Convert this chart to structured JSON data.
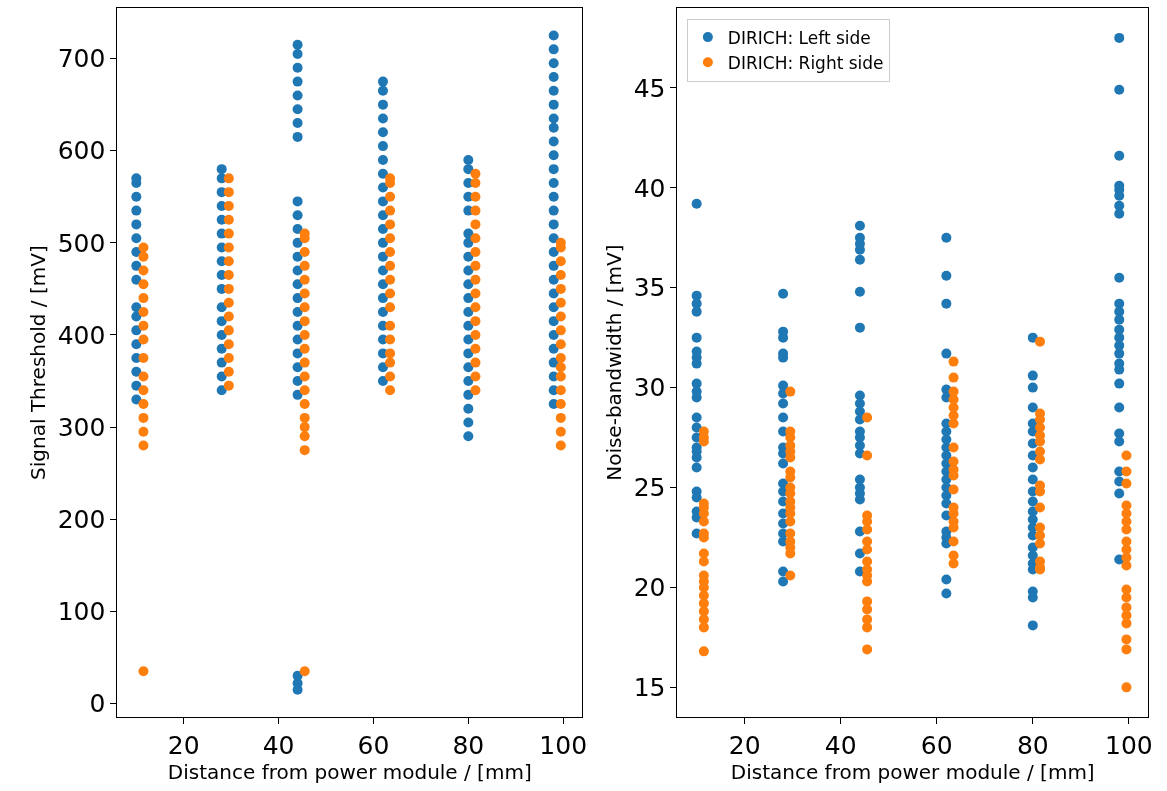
{
  "chart_data": [
    {
      "type": "scatter",
      "xlabel": "Distance from power module / [mm]",
      "ylabel": "Signal Threshold / [mV]",
      "xlim": [
        6,
        104
      ],
      "ylim": [
        -15,
        755
      ],
      "xticks": [
        20,
        40,
        60,
        80,
        100
      ],
      "yticks": [
        0,
        100,
        200,
        300,
        400,
        500,
        600,
        700
      ],
      "legend": false,
      "marker": "circle",
      "series": [
        {
          "color": "#1f77b4",
          "x": [
            10,
            10,
            10,
            10,
            10,
            10,
            10,
            10,
            10,
            10,
            10,
            10,
            10,
            10,
            10,
            10,
            10,
            28,
            28,
            28,
            28,
            28,
            28,
            28,
            28,
            28,
            28,
            28,
            28,
            28,
            28,
            28,
            28,
            28,
            44,
            44,
            44,
            44,
            44,
            44,
            44,
            44,
            44,
            44,
            44,
            44,
            44,
            44,
            44,
            44,
            44,
            44,
            44,
            44,
            44,
            44,
            44,
            44,
            44,
            44,
            62,
            62,
            62,
            62,
            62,
            62,
            62,
            62,
            62,
            62,
            62,
            62,
            62,
            62,
            62,
            62,
            62,
            62,
            62,
            62,
            62,
            62,
            62,
            80,
            80,
            80,
            80,
            80,
            80,
            80,
            80,
            80,
            80,
            80,
            80,
            80,
            80,
            80,
            80,
            80,
            80,
            80,
            80,
            80,
            98,
            98,
            98,
            98,
            98,
            98,
            98,
            98,
            98,
            98,
            98,
            98,
            98,
            98,
            98,
            98,
            98,
            98,
            98,
            98,
            98,
            98,
            98,
            98,
            98,
            98,
            98,
            98
          ],
          "values": [
            330,
            345,
            360,
            375,
            390,
            405,
            420,
            430,
            460,
            475,
            490,
            505,
            520,
            535,
            550,
            565,
            570,
            340,
            355,
            370,
            385,
            400,
            415,
            430,
            450,
            465,
            480,
            495,
            510,
            525,
            540,
            555,
            570,
            580,
            15,
            22,
            30,
            335,
            350,
            365,
            380,
            395,
            410,
            425,
            440,
            455,
            470,
            485,
            500,
            515,
            530,
            545,
            615,
            630,
            645,
            660,
            675,
            690,
            705,
            715,
            350,
            365,
            380,
            395,
            410,
            425,
            440,
            455,
            470,
            485,
            500,
            515,
            530,
            545,
            560,
            575,
            590,
            605,
            620,
            635,
            650,
            665,
            675,
            290,
            305,
            320,
            335,
            350,
            365,
            380,
            395,
            410,
            425,
            440,
            455,
            470,
            485,
            500,
            510,
            535,
            550,
            565,
            580,
            590,
            325,
            340,
            355,
            370,
            385,
            400,
            415,
            430,
            445,
            460,
            475,
            490,
            505,
            520,
            535,
            550,
            565,
            580,
            595,
            610,
            625,
            635,
            650,
            665,
            680,
            695,
            710,
            725
          ]
        },
        {
          "color": "#ff7f0e",
          "x": [
            11.5,
            11.5,
            11.5,
            11.5,
            11.5,
            11.5,
            11.5,
            11.5,
            11.5,
            11.5,
            11.5,
            11.5,
            11.5,
            11.5,
            11.5,
            11.5,
            29.5,
            29.5,
            29.5,
            29.5,
            29.5,
            29.5,
            29.5,
            29.5,
            29.5,
            29.5,
            29.5,
            29.5,
            29.5,
            29.5,
            29.5,
            29.5,
            45.5,
            45.5,
            45.5,
            45.5,
            45.5,
            45.5,
            45.5,
            45.5,
            45.5,
            45.5,
            45.5,
            45.5,
            45.5,
            45.5,
            45.5,
            45.5,
            45.5,
            45.5,
            45.5,
            63.5,
            63.5,
            63.5,
            63.5,
            63.5,
            63.5,
            63.5,
            63.5,
            63.5,
            63.5,
            63.5,
            63.5,
            63.5,
            63.5,
            63.5,
            63.5,
            63.5,
            81.5,
            81.5,
            81.5,
            81.5,
            81.5,
            81.5,
            81.5,
            81.5,
            81.5,
            81.5,
            81.5,
            81.5,
            81.5,
            81.5,
            81.5,
            81.5,
            81.5,
            99.5,
            99.5,
            99.5,
            99.5,
            99.5,
            99.5,
            99.5,
            99.5,
            99.5,
            99.5,
            99.5,
            99.5,
            99.5,
            99.5,
            99.5,
            99.5,
            99.5
          ],
          "values": [
            35,
            280,
            295,
            310,
            325,
            340,
            355,
            375,
            395,
            410,
            425,
            440,
            455,
            470,
            485,
            495,
            345,
            360,
            375,
            390,
            405,
            420,
            435,
            450,
            465,
            480,
            495,
            510,
            525,
            540,
            555,
            570,
            35,
            275,
            290,
            300,
            310,
            325,
            340,
            355,
            370,
            385,
            400,
            415,
            430,
            445,
            460,
            475,
            490,
            505,
            510,
            340,
            355,
            370,
            380,
            395,
            410,
            430,
            445,
            460,
            475,
            490,
            505,
            520,
            535,
            550,
            565,
            570,
            340,
            355,
            370,
            385,
            400,
            415,
            430,
            445,
            460,
            475,
            490,
            505,
            520,
            535,
            550,
            565,
            575,
            280,
            295,
            310,
            325,
            340,
            355,
            365,
            375,
            390,
            405,
            420,
            435,
            450,
            465,
            480,
            495,
            500
          ]
        }
      ]
    },
    {
      "type": "scatter",
      "xlabel": "Distance from power module / [mm]",
      "ylabel": "Noise-bandwidth / [mV]",
      "xlim": [
        6,
        104
      ],
      "ylim": [
        13.5,
        49
      ],
      "xticks": [
        20,
        40,
        60,
        80,
        100
      ],
      "yticks": [
        15,
        20,
        25,
        30,
        35,
        40,
        45
      ],
      "legend": "top left",
      "marker": "circle",
      "series": [
        {
          "name": "DIRICH: Left side",
          "color": "#1f77b4",
          "x": [
            10,
            10,
            10,
            10,
            10,
            10,
            10,
            10,
            10,
            10,
            10,
            10,
            10,
            10,
            10,
            10,
            10,
            10,
            10,
            10,
            10,
            10,
            10,
            28,
            28,
            28,
            28,
            28,
            28,
            28,
            28,
            28,
            28,
            28,
            28,
            28,
            28,
            28,
            28,
            28,
            28,
            28,
            28,
            28,
            28,
            44,
            44,
            44,
            44,
            44,
            44,
            44,
            44,
            44,
            44,
            44,
            44,
            44,
            44,
            44,
            44,
            44,
            44,
            44,
            44,
            44,
            44,
            62,
            62,
            62,
            62,
            62,
            62,
            62,
            62,
            62,
            62,
            62,
            62,
            62,
            62,
            62,
            62,
            62,
            62,
            62,
            62,
            62,
            62,
            62,
            80,
            80,
            80,
            80,
            80,
            80,
            80,
            80,
            80,
            80,
            80,
            80,
            80,
            80,
            80,
            80,
            80,
            80,
            80,
            80,
            80,
            80,
            80,
            98,
            98,
            98,
            98,
            98,
            98,
            98,
            98,
            98,
            98,
            98,
            98,
            98,
            98,
            98,
            98,
            98,
            98,
            98,
            98,
            98,
            98,
            98,
            98,
            98,
            98
          ],
          "values": [
            39.2,
            34.6,
            34.2,
            33.8,
            32.5,
            31.8,
            31.5,
            31.2,
            30.2,
            29.8,
            29.5,
            28.5,
            28,
            27.5,
            27,
            26.8,
            26.5,
            26,
            24.8,
            24.5,
            23.8,
            23.5,
            22.7,
            34.7,
            32.8,
            32.5,
            31.7,
            31.5,
            30.1,
            29.7,
            29.2,
            28.5,
            27.8,
            27,
            26.7,
            26.2,
            25.2,
            24.8,
            24.3,
            23.7,
            23.2,
            22.7,
            22.3,
            20.8,
            20.3,
            38.1,
            37.5,
            37.2,
            36.9,
            36.4,
            34.8,
            33,
            29.6,
            29.2,
            28.8,
            28.4,
            27.8,
            27.5,
            27.1,
            26.7,
            25.4,
            25,
            24.7,
            24.4,
            22.8,
            21.7,
            20.8,
            37.5,
            35.6,
            34.2,
            31.7,
            29.9,
            29.5,
            28.2,
            27.8,
            27.4,
            27,
            26.6,
            26.2,
            25.8,
            25.4,
            25,
            24.6,
            24.2,
            23.6,
            22.8,
            22.5,
            22.2,
            20.4,
            19.7,
            32.5,
            30.6,
            30,
            29,
            28.2,
            27.8,
            27.2,
            26.6,
            26,
            25.4,
            24.8,
            24.3,
            23.8,
            23.4,
            23,
            22.6,
            22,
            21.6,
            21.2,
            20.9,
            19.8,
            19.5,
            18.1,
            47.5,
            44.9,
            41.6,
            40.1,
            39.9,
            39.6,
            39.1,
            38.7,
            35.5,
            34.2,
            33.8,
            33.4,
            32.9,
            32.5,
            32.1,
            31.7,
            31.2,
            30.9,
            30.2,
            29,
            27.7,
            27.3,
            25.8,
            25.3,
            24.7,
            21.4
          ]
        },
        {
          "name": "DIRICH: Right side",
          "color": "#ff7f0e",
          "x": [
            11.5,
            11.5,
            11.5,
            11.5,
            11.5,
            11.5,
            11.5,
            11.5,
            11.5,
            11.5,
            11.5,
            11.5,
            11.5,
            11.5,
            11.5,
            11.5,
            11.5,
            11.5,
            11.5,
            11.5,
            29.5,
            29.5,
            29.5,
            29.5,
            29.5,
            29.5,
            29.5,
            29.5,
            29.5,
            29.5,
            29.5,
            29.5,
            29.5,
            29.5,
            29.5,
            29.5,
            29.5,
            29.5,
            29.5,
            45.5,
            45.5,
            45.5,
            45.5,
            45.5,
            45.5,
            45.5,
            45.5,
            45.5,
            45.5,
            45.5,
            45.5,
            45.5,
            45.5,
            45.5,
            45.5,
            63.5,
            63.5,
            63.5,
            63.5,
            63.5,
            63.5,
            63.5,
            63.5,
            63.5,
            63.5,
            63.5,
            63.5,
            63.5,
            63.5,
            63.5,
            63.5,
            63.5,
            63.5,
            63.5,
            81.5,
            81.5,
            81.5,
            81.5,
            81.5,
            81.5,
            81.5,
            81.5,
            81.5,
            81.5,
            81.5,
            81.5,
            81.5,
            81.5,
            81.5,
            81.5,
            81.5,
            99.5,
            99.5,
            99.5,
            99.5,
            99.5,
            99.5,
            99.5,
            99.5,
            99.5,
            99.5,
            99.5,
            99.5,
            99.5,
            99.5,
            99.5,
            99.5,
            99.5,
            99.5,
            99.5
          ],
          "values": [
            27.8,
            27.5,
            27.3,
            24.2,
            24,
            23.7,
            23.3,
            22.7,
            22.5,
            21.7,
            21.3,
            20.6,
            20.3,
            20,
            19.6,
            19.2,
            18.8,
            18.4,
            18,
            16.8,
            29.8,
            27.8,
            27.5,
            27.1,
            26.8,
            26.5,
            25.8,
            25.5,
            25,
            24.7,
            24.3,
            24,
            23.7,
            23.3,
            22.7,
            22.3,
            22,
            21.7,
            20.6,
            28.5,
            26.6,
            23.6,
            23.3,
            22.9,
            22.3,
            21.9,
            21.3,
            20.9,
            20.6,
            20.3,
            19.3,
            18.9,
            18.4,
            18,
            16.9,
            31.3,
            30.5,
            29.8,
            29.4,
            29,
            28.6,
            28.2,
            27,
            26.3,
            25.9,
            25.6,
            24.9,
            24,
            23.7,
            23.3,
            23,
            22.3,
            21.6,
            21.2,
            32.3,
            28.7,
            28.4,
            28,
            27.6,
            27.3,
            26.8,
            26.4,
            25.1,
            24.8,
            24,
            23,
            22.6,
            22.2,
            21.3,
            21,
            20.9,
            26.6,
            25.8,
            25.2,
            24.1,
            23.7,
            23.3,
            22.9,
            22.3,
            21.9,
            21.5,
            21.1,
            19.9,
            19.5,
            19,
            18.6,
            18.2,
            17.4,
            16.9,
            15
          ]
        }
      ]
    }
  ]
}
